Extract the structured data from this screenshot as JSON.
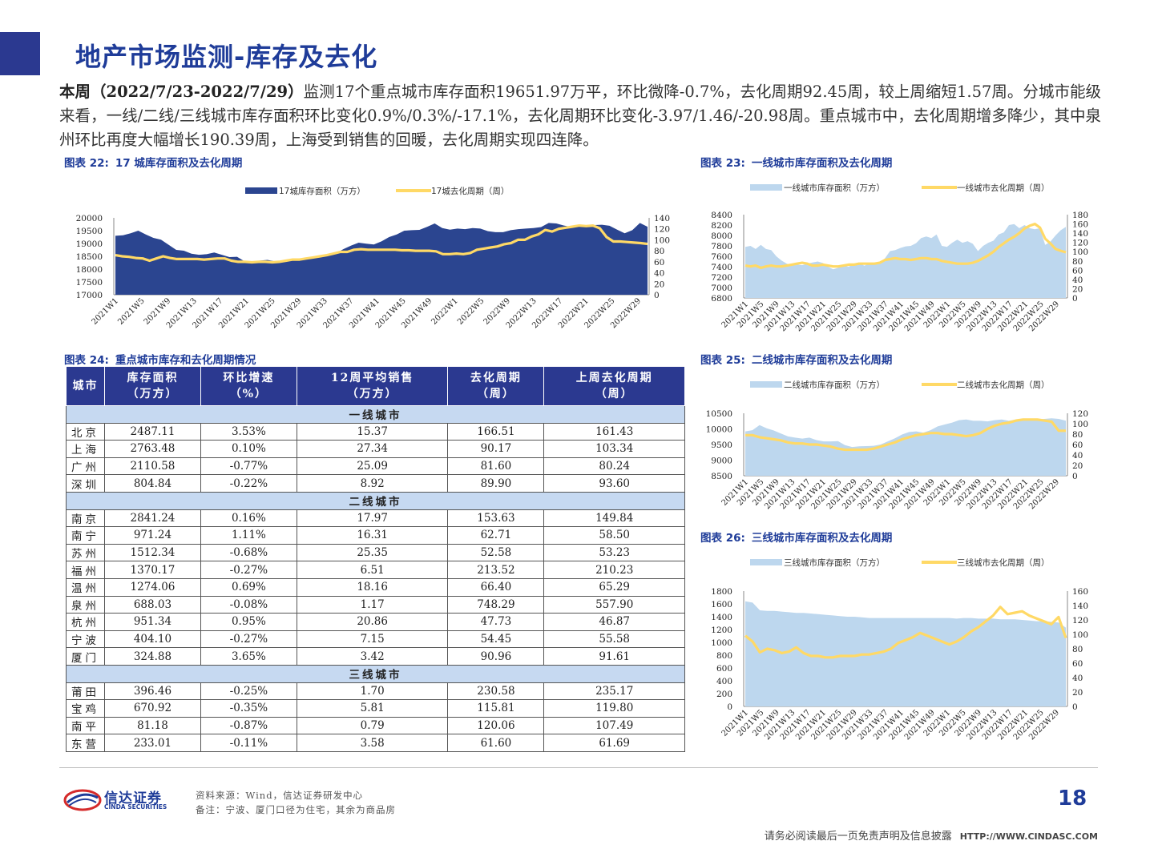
{
  "header": {
    "title": "地产市场监测-库存及去化"
  },
  "summary": {
    "lead": "本周（2022/7/23-2022/7/29）",
    "body": "监测17个重点城市库存面积19651.97万平，环比微降-0.7%，去化周期92.45周，较上周缩短1.57周。分城市能级来看，一线/二线/三线城市库存面积环比变化0.9%/0.3%/-17.1%，去化周期环比变化-3.97/1.46/-20.98周。重点城市中，去化周期增多降少，其中泉州环比再度大幅增长190.39周，上海受到销售的回暖，去化周期实现四连降。"
  },
  "figures": {
    "fig22": {
      "number": "图表 22:",
      "title": "17 城库存面积及去化周期"
    },
    "fig23": {
      "number": "图表 23:",
      "title": "一线城市库存面积及去化周期"
    },
    "fig24": {
      "number": "图表 24:",
      "title": "重点城市库存和去化周期情况"
    },
    "fig25": {
      "number": "图表 25:",
      "title": "二线城市库存面积及去化周期"
    },
    "fig26": {
      "number": "图表 26:",
      "title": "三线城市库存面积及去化周期"
    }
  },
  "colors": {
    "brand": "#2b3990",
    "title_blue": "#1f3c99",
    "area_dark": "#2b4590",
    "area_light": "#bdd7ee",
    "line_yellow": "#ffd966",
    "tier_row": "#c6d9f1"
  },
  "x_tick_labels": [
    "2021W1",
    "2021W5",
    "2021W9",
    "2021W13",
    "2021W17",
    "2021W21",
    "2021W25",
    "2021W29",
    "2021W33",
    "2021W37",
    "2021W41",
    "2021W45",
    "2021W49",
    "2022W1",
    "2022W5",
    "2022W9",
    "2022W13",
    "2022W17",
    "2022W21",
    "2022W25",
    "2022W29"
  ],
  "chart_data": [
    {
      "id": "fig22",
      "type": "area",
      "legend": [
        "17城库存面积（万方）",
        "17城去化周期（周）"
      ],
      "left_axis": {
        "ticks": [
          "20000",
          "19500",
          "19000",
          "18500",
          "18000",
          "17500",
          "17000"
        ],
        "ylim": [
          17000,
          20000
        ]
      },
      "right_axis": {
        "ticks": [
          "140",
          "120",
          "100",
          "80",
          "60",
          "40",
          "20",
          "0"
        ],
        "ylim": [
          0,
          140
        ]
      },
      "series": [
        {
          "name": "17城库存面积（万方）",
          "axis": "left",
          "values": [
            19300,
            19320,
            19400,
            19500,
            19350,
            19220,
            19150,
            18950,
            18750,
            18720,
            18600,
            18560,
            18580,
            18650,
            18560,
            18470,
            18480,
            18300,
            18300,
            18330,
            18360,
            18300,
            18330,
            18360,
            18400,
            18420,
            18440,
            18470,
            18560,
            18620,
            18780,
            18920,
            19030,
            18990,
            18960,
            19080,
            19250,
            19350,
            19500,
            19520,
            19530,
            19650,
            19780,
            19600,
            19540,
            19580,
            19560,
            19600,
            19580,
            19480,
            19440,
            19440,
            19520,
            19560,
            19580,
            19600,
            19640,
            19800,
            19780,
            19700,
            19650,
            19680,
            19700,
            19720,
            19730,
            19690,
            19540,
            19400,
            19520,
            19800,
            19651.97
          ]
        },
        {
          "name": "17城去化周期（周）",
          "axis": "right",
          "values": [
            72,
            70,
            69,
            67,
            66,
            62,
            66,
            70,
            67,
            65,
            65,
            65,
            65,
            64,
            65,
            66,
            66,
            62,
            60,
            60,
            59,
            60,
            60,
            59,
            60,
            62,
            64,
            64,
            66,
            68,
            70,
            72,
            75,
            78,
            78,
            82,
            83,
            82,
            82,
            82,
            82,
            82,
            81,
            81,
            80,
            80,
            80,
            79,
            74,
            74,
            75,
            74,
            76,
            82,
            84,
            86,
            88,
            92,
            94,
            100,
            100,
            106,
            110,
            118,
            115,
            120,
            122,
            124,
            126,
            125,
            126,
            121,
            105,
            97,
            97,
            96,
            95,
            94.02,
            92.45
          ]
        }
      ]
    },
    {
      "id": "fig23",
      "type": "area",
      "legend": [
        "一线城市库存面积（万方）",
        "一线城市去化周期（周）"
      ],
      "left_axis": {
        "ticks": [
          "8400",
          "8200",
          "8000",
          "7800",
          "7600",
          "7400",
          "7200",
          "7000",
          "6800"
        ],
        "ylim": [
          6800,
          8400
        ]
      },
      "right_axis": {
        "ticks": [
          "180",
          "160",
          "140",
          "120",
          "100",
          "80",
          "60",
          "40",
          "20",
          "0"
        ],
        "ylim": [
          0,
          180
        ]
      },
      "series": [
        {
          "name": "一线城市库存面积（万方）",
          "axis": "left",
          "values": [
            7780,
            7800,
            7740,
            7820,
            7740,
            7720,
            7600,
            7520,
            7460,
            7420,
            7440,
            7430,
            7460,
            7480,
            7500,
            7470,
            7400,
            7350,
            7380,
            7420,
            7400,
            7460,
            7480,
            7420,
            7460,
            7480,
            7460,
            7560,
            7700,
            7720,
            7760,
            7790,
            7800,
            7850,
            7950,
            7980,
            7950,
            8020,
            7800,
            7780,
            7860,
            7920,
            7860,
            7890,
            7840,
            7700,
            7800,
            7860,
            7900,
            8020,
            8060,
            8200,
            8220,
            8140,
            8200,
            8140,
            8120,
            8140,
            7820,
            7880,
            8000,
            8100,
            8165.01
          ]
        },
        {
          "name": "一线城市去化周期（周）",
          "axis": "right",
          "values": [
            70,
            68,
            70,
            65,
            68,
            70,
            68,
            68,
            70,
            72,
            74,
            76,
            74,
            70,
            70,
            72,
            70,
            68,
            68,
            70,
            72,
            72,
            74,
            74,
            74,
            74,
            76,
            82,
            84,
            86,
            84,
            84,
            82,
            84,
            86,
            86,
            84,
            84,
            80,
            78,
            76,
            74,
            74,
            74,
            76,
            80,
            86,
            92,
            100,
            110,
            118,
            126,
            132,
            140,
            150,
            156,
            160,
            152,
            128,
            118,
            106,
            102,
            98.61
          ]
        }
      ]
    },
    {
      "id": "fig25",
      "type": "area",
      "legend": [
        "二线城市库存面积（万方）",
        "二线城市去化周期（周）"
      ],
      "left_axis": {
        "ticks": [
          "10500",
          "10000",
          "9500",
          "9000",
          "8500"
        ],
        "ylim": [
          8500,
          10500
        ]
      },
      "right_axis": {
        "ticks": [
          "120",
          "100",
          "80",
          "60",
          "40",
          "20",
          "0"
        ],
        "ylim": [
          0,
          120
        ]
      },
      "series": [
        {
          "name": "二线城市库存面积（万方）",
          "axis": "left",
          "values": [
            9920,
            9960,
            10120,
            10020,
            9950,
            9850,
            9760,
            9720,
            9690,
            9720,
            9640,
            9600,
            9600,
            9610,
            9480,
            9420,
            9440,
            9450,
            9460,
            9500,
            9600,
            9700,
            9820,
            9900,
            9920,
            9880,
            9960,
            10080,
            10140,
            10200,
            10280,
            10300,
            10260,
            10260,
            10240,
            10280,
            10300,
            10260,
            10300,
            10320,
            10300,
            10300,
            10320,
            10340,
            10320,
            10260.93
          ]
        },
        {
          "name": "二线城市去化周期（周）",
          "axis": "right",
          "values": [
            78,
            78,
            74,
            72,
            70,
            68,
            64,
            62,
            62,
            60,
            60,
            58,
            56,
            52,
            50,
            50,
            50,
            50,
            52,
            56,
            60,
            64,
            70,
            74,
            78,
            80,
            82,
            82,
            80,
            80,
            78,
            76,
            78,
            82,
            90,
            96,
            100,
            102,
            106,
            108,
            108,
            108,
            106,
            104,
            86.44,
            86.44
          ]
        }
      ]
    },
    {
      "id": "fig26",
      "type": "area",
      "legend": [
        "三线城市库存面积（万方）",
        "三线城市去化周期（周）"
      ],
      "left_axis": {
        "ticks": [
          "1800",
          "1600",
          "1400",
          "1200",
          "1000",
          "800",
          "600",
          "400",
          "200",
          "0"
        ],
        "ylim": [
          0,
          1800
        ]
      },
      "right_axis": {
        "ticks": [
          "160",
          "140",
          "120",
          "100",
          "80",
          "60",
          "40",
          "20",
          "0"
        ],
        "ylim": [
          0,
          160
        ]
      },
      "series": [
        {
          "name": "三线城市库存面积（万方）",
          "axis": "left",
          "values": [
            1640,
            1620,
            1500,
            1490,
            1490,
            1480,
            1470,
            1460,
            1460,
            1450,
            1440,
            1430,
            1420,
            1410,
            1400,
            1400,
            1390,
            1380,
            1380,
            1380,
            1380,
            1380,
            1380,
            1380,
            1380,
            1380,
            1380,
            1380,
            1380,
            1370,
            1380,
            1380,
            1370,
            1370,
            1370,
            1360,
            1360,
            1360,
            1350,
            1340,
            1330,
            1330,
            1320,
            1310,
            1230
          ]
        },
        {
          "name": "三线城市去化周期（周）",
          "axis": "right",
          "values": [
            98,
            90,
            75,
            80,
            78,
            74,
            76,
            82,
            74,
            70,
            70,
            68,
            68,
            70,
            70,
            70,
            72,
            72,
            74,
            76,
            80,
            88,
            92,
            96,
            102,
            98,
            94,
            90,
            86,
            90,
            96,
            104,
            110,
            118,
            126,
            138,
            128,
            130,
            132,
            126,
            122,
            118,
            114,
            124,
            95
          ]
        }
      ]
    }
  ],
  "table": {
    "headers": [
      "城市",
      "库存面积\n（万方）",
      "环比增速\n（%）",
      "12周平均销售\n（万方）",
      "去化周期\n（周）",
      "上周去化周期\n（周）"
    ],
    "h1a": "库存面积",
    "h1b": "（万方）",
    "h2a": "环比增速",
    "h2b": "（%）",
    "h3a": "12周平均销售",
    "h3b": "（万方）",
    "h4a": "去化周期",
    "h4b": "（周）",
    "h5a": "上周去化周期",
    "h5b": "（周）",
    "h0": "城市",
    "tiers": [
      {
        "label": "一线城市",
        "rows": [
          [
            "北京",
            "2487.11",
            "3.53%",
            "15.37",
            "166.51",
            "161.43"
          ],
          [
            "上海",
            "2763.48",
            "0.10%",
            "27.34",
            "90.17",
            "103.34"
          ],
          [
            "广州",
            "2110.58",
            "-0.77%",
            "25.09",
            "81.60",
            "80.24"
          ],
          [
            "深圳",
            "804.84",
            "-0.22%",
            "8.92",
            "89.90",
            "93.60"
          ]
        ]
      },
      {
        "label": "二线城市",
        "rows": [
          [
            "南京",
            "2841.24",
            "0.16%",
            "17.97",
            "153.63",
            "149.84"
          ],
          [
            "南宁",
            "971.24",
            "1.11%",
            "16.31",
            "62.71",
            "58.50"
          ],
          [
            "苏州",
            "1512.34",
            "-0.68%",
            "25.35",
            "52.58",
            "53.23"
          ],
          [
            "福州",
            "1370.17",
            "-0.27%",
            "6.51",
            "213.52",
            "210.23"
          ],
          [
            "温州",
            "1274.06",
            "0.69%",
            "18.16",
            "66.40",
            "65.29"
          ],
          [
            "泉州",
            "688.03",
            "-0.08%",
            "1.17",
            "748.29",
            "557.90"
          ],
          [
            "杭州",
            "951.34",
            "0.95%",
            "20.86",
            "47.73",
            "46.87"
          ],
          [
            "宁波",
            "404.10",
            "-0.27%",
            "7.15",
            "54.45",
            "55.58"
          ],
          [
            "厦门",
            "324.88",
            "3.65%",
            "3.42",
            "90.96",
            "91.61"
          ]
        ]
      },
      {
        "label": "三线城市",
        "rows": [
          [
            "莆田",
            "396.46",
            "-0.25%",
            "1.70",
            "230.58",
            "235.17"
          ],
          [
            "宝鸡",
            "670.92",
            "-0.35%",
            "5.81",
            "115.81",
            "119.80"
          ],
          [
            "南平",
            "81.18",
            "-0.87%",
            "0.79",
            "120.06",
            "107.49"
          ],
          [
            "东营",
            "233.01",
            "-0.11%",
            "3.58",
            "61.60",
            "61.69"
          ]
        ]
      }
    ]
  },
  "footer": {
    "logo_cn": "信达证券",
    "logo_en": "CINDA SECURITIES",
    "source": "资料来源：Wind，信达证券研发中心",
    "note": "备注：宁波、厦门口径为住宅，其余为商品房",
    "page": "18",
    "disclaimer": "请务必阅读最后一页免责声明及信息披露",
    "url": "HTTP://WWW.CINDASC.COM"
  }
}
